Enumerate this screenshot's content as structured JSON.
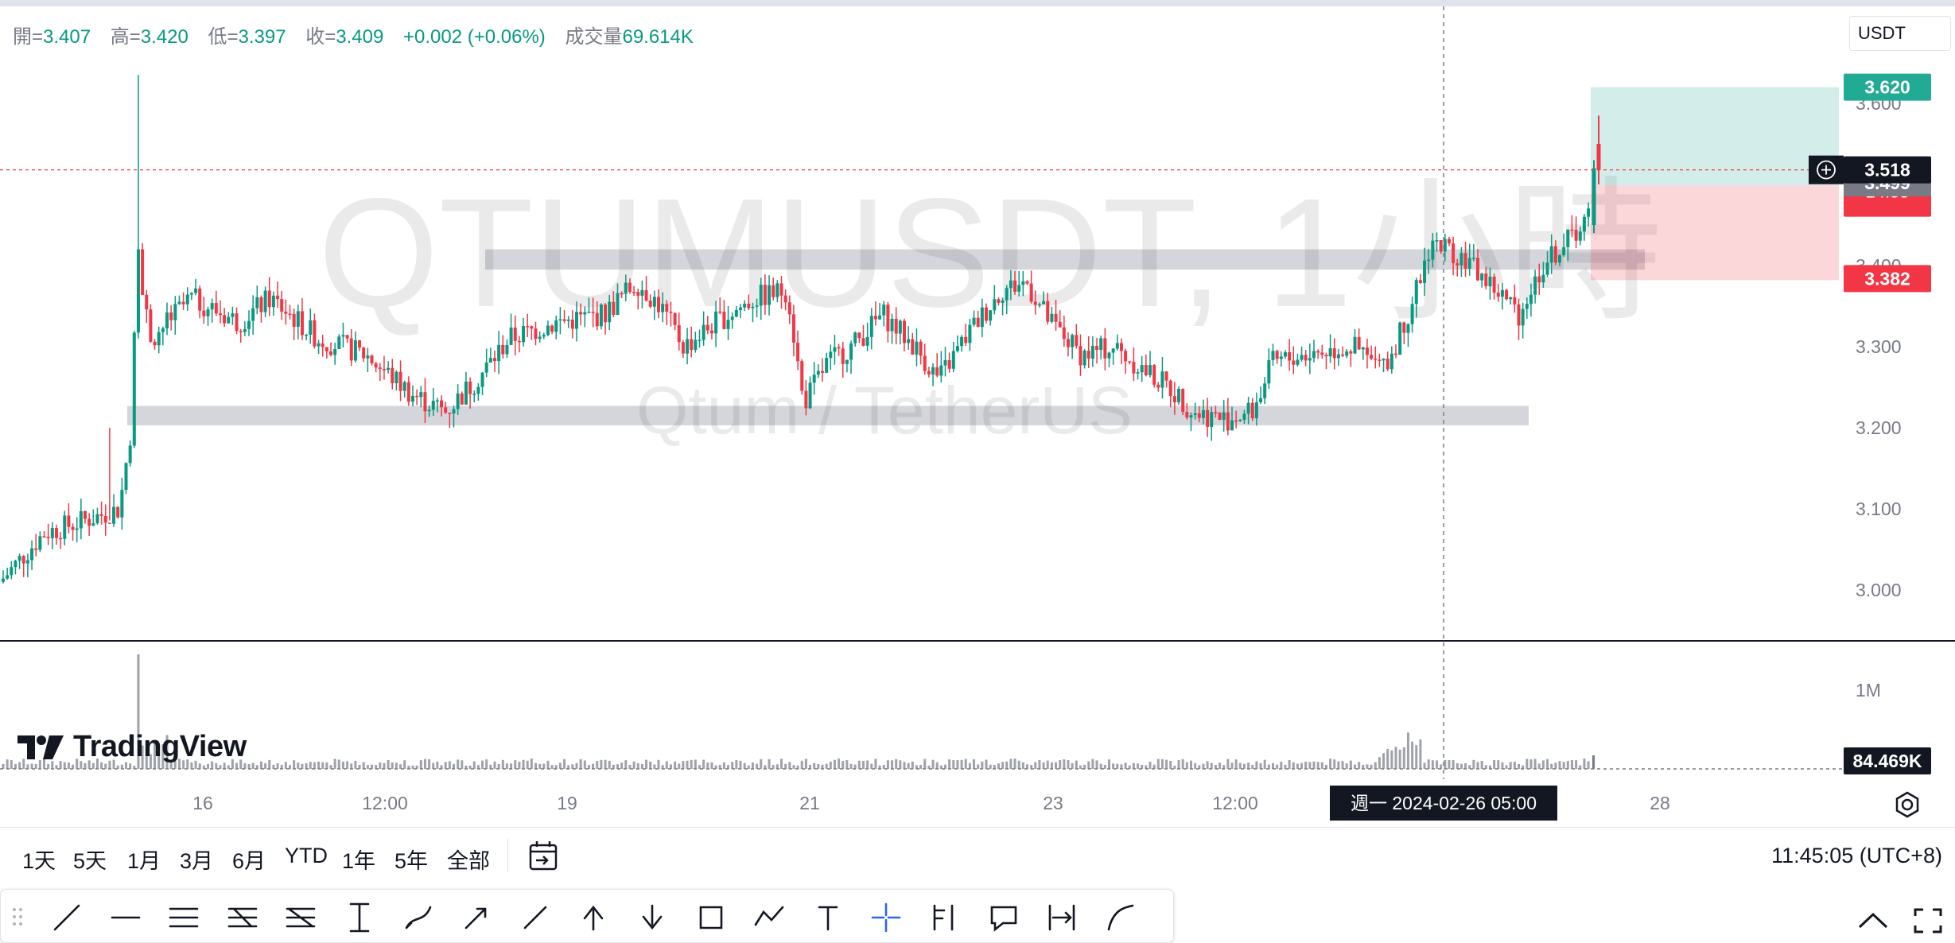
{
  "header": {
    "open_label": "開=",
    "open_value": "3.407",
    "high_label": "高=",
    "high_value": "3.420",
    "low_label": "低=",
    "low_value": "3.397",
    "close_label": "收=",
    "close_value": "3.409",
    "change_value": "+0.002 (+0.06%)",
    "volume_label": "成交量",
    "volume_value": "69.614K",
    "currency": "USDT"
  },
  "watermark": {
    "symbol_line": "QTUMUSDT, 1小時",
    "pair_line": "Qtum / TetherUS"
  },
  "brand": {
    "name": "TradingView"
  },
  "colors": {
    "up": "#089981",
    "down": "#f23645",
    "crosshair": "#787b86",
    "target": "#22ab94",
    "stop": "#f23645",
    "dark_label": "#131722",
    "grey_label": "#787b86"
  },
  "chart_data": {
    "type": "candlestick",
    "symbol": "QTUMUSDT",
    "interval": "1小時",
    "y_axis": {
      "ticks": [
        "3.000",
        "3.100",
        "3.200",
        "3.300",
        "3.400",
        "3.500",
        "3.600"
      ],
      "range": [
        2.97,
        3.66
      ]
    },
    "x_axis": {
      "ticks": [
        "16",
        "12:00",
        "19",
        "21",
        "23",
        "12:00",
        "28"
      ]
    },
    "volume_axis": {
      "ticks": [
        "1M"
      ]
    },
    "price_labels": {
      "target": "3.620",
      "current_crosshair": "3.518",
      "countdown": "14:55",
      "last": "3.499",
      "stop": "3.382",
      "volume_last": "84.469K"
    },
    "crosshair": {
      "price": 3.518,
      "date_label": "週一   2024-02-26    05:00"
    },
    "zones": [
      {
        "name": "resistance",
        "top": 3.42,
        "bottom": 3.395
      },
      {
        "name": "support",
        "top": 3.227,
        "bottom": 3.203
      }
    ],
    "position": {
      "entry": 3.499,
      "target": 3.62,
      "stop": 3.382
    },
    "candles_summary": {
      "start_price": 3.01,
      "spike_high": 3.635,
      "range_high": 3.43,
      "range_low": 3.18,
      "last_high": 3.585,
      "last_close": 3.518
    }
  },
  "range_bar": {
    "buttons": [
      "1天",
      "5天",
      "1月",
      "3月",
      "6月",
      "YTD",
      "1年",
      "5年",
      "全部"
    ],
    "clock": "11:45:05 (UTC+8)"
  },
  "toolbar": {
    "tools": [
      "trend-line-icon",
      "horizontal-ray-icon",
      "parallel-channel-icon",
      "fib-retracement-icon",
      "pitchfork-icon",
      "price-range-icon",
      "brush-icon",
      "arrow-icon",
      "arrow-marker-icon",
      "arrow-up-icon",
      "arrow-down-icon",
      "rectangle-icon",
      "path-icon",
      "text-icon",
      "crosshair-icon",
      "long-position-icon",
      "callout-icon",
      "date-range-icon",
      "curve-icon"
    ]
  }
}
